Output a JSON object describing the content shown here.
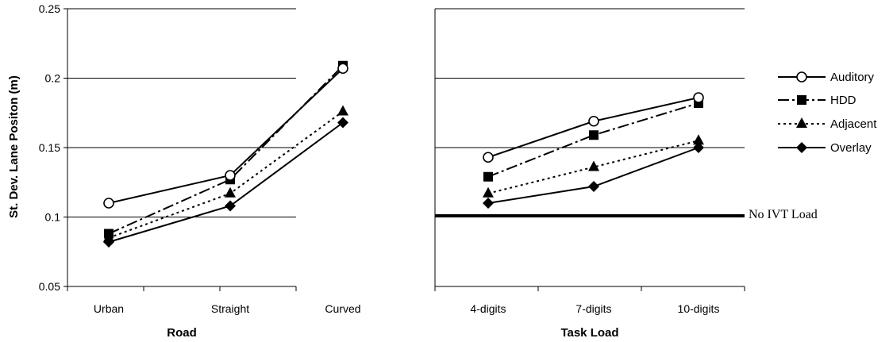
{
  "chart_data": [
    {
      "type": "line",
      "categories": [
        "Urban",
        "Straight",
        "Curved"
      ],
      "xlabel": "Road",
      "ylabel": "St. Dev. Lane Positon (m)",
      "ylim": [
        0.05,
        0.25
      ],
      "yticks": [
        "0.05",
        "0.1",
        "0.15",
        "0.2",
        "0.25"
      ],
      "grid": true,
      "series": [
        {
          "name": "Auditory",
          "values": [
            0.11,
            0.13,
            0.207
          ]
        },
        {
          "name": "HDD",
          "values": [
            0.088,
            0.127,
            0.209
          ]
        },
        {
          "name": "Adjacent",
          "values": [
            0.085,
            0.117,
            0.176
          ]
        },
        {
          "name": "Overlay",
          "values": [
            0.082,
            0.108,
            0.168
          ]
        }
      ]
    },
    {
      "type": "line",
      "categories": [
        "4-digits",
        "7-digits",
        "10-digits"
      ],
      "xlabel": "Task Load",
      "ylim": [
        0.05,
        0.25
      ],
      "grid": true,
      "series": [
        {
          "name": "Auditory",
          "values": [
            0.143,
            0.169,
            0.186
          ]
        },
        {
          "name": "HDD",
          "values": [
            0.129,
            0.159,
            0.182
          ]
        },
        {
          "name": "Adjacent",
          "values": [
            0.117,
            0.136,
            0.155
          ]
        },
        {
          "name": "Overlay",
          "values": [
            0.11,
            0.122,
            0.15
          ]
        }
      ],
      "reference_line": {
        "label": "No IVT Load",
        "value": 0.101
      }
    }
  ],
  "legend": {
    "position": "right",
    "items": [
      {
        "label": "Auditory",
        "marker": "circle-open",
        "dash": "solid"
      },
      {
        "label": "HDD",
        "marker": "square",
        "dash": "dashdot"
      },
      {
        "label": "Adjacent",
        "marker": "triangle",
        "dash": "dotted"
      },
      {
        "label": "Overlay",
        "marker": "diamond",
        "dash": "solid"
      }
    ]
  }
}
